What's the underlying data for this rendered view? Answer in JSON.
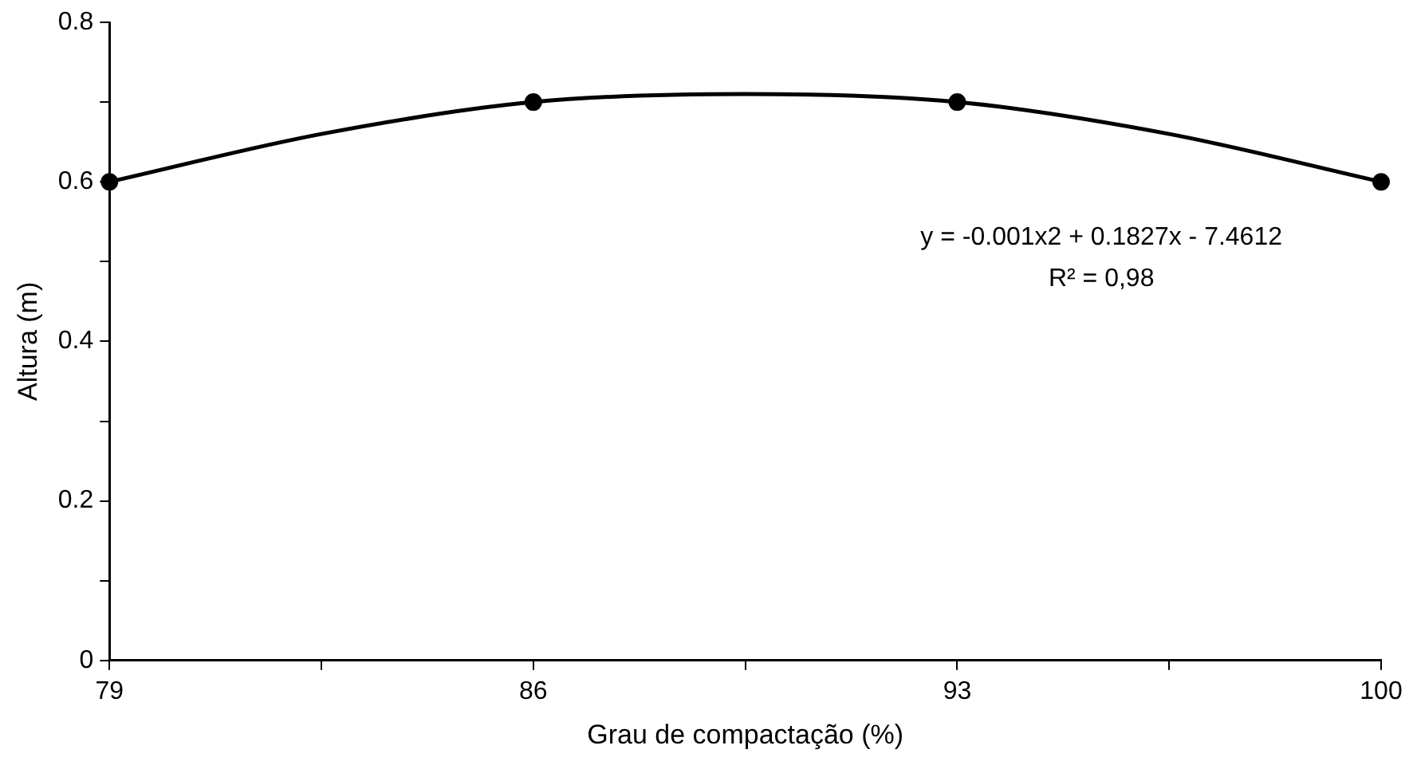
{
  "chart_data": {
    "type": "scatter",
    "xlabel": "Grau de compactação (%)",
    "ylabel": "Altura (m)",
    "xlim": [
      79,
      100
    ],
    "xticks": [
      79,
      {
        "value": 82.5,
        "label": null
      },
      86,
      {
        "value": 89.5,
        "label": null
      },
      93,
      {
        "value": 96.5,
        "label": null
      },
      100
    ],
    "ylim": [
      0,
      0.8
    ],
    "yticks": [
      0,
      {
        "value": 0.1,
        "label": null
      },
      0.2,
      {
        "value": 0.3,
        "label": null
      },
      0.4,
      {
        "value": 0.5,
        "label": null
      },
      0.6,
      {
        "value": 0.7,
        "label": null
      },
      0.8
    ],
    "series": [
      {
        "type": "line",
        "color": "#000000",
        "marker": "none",
        "x": [
          79,
          82.5,
          86,
          89.5,
          93,
          96.5,
          100
        ],
        "values": [
          0.6,
          0.66,
          0.7,
          0.71,
          0.7,
          0.66,
          0.6
        ]
      },
      {
        "color": "#000000",
        "marker": "circle",
        "x": [
          79,
          86,
          93,
          100
        ],
        "values": [
          0.6,
          0.7,
          0.7,
          0.6
        ]
      }
    ],
    "annotations": [
      "y = -0.001x2 + 0.1827x - 7.4612",
      "R² = 0,98"
    ],
    "grid": false,
    "legend": false
  }
}
